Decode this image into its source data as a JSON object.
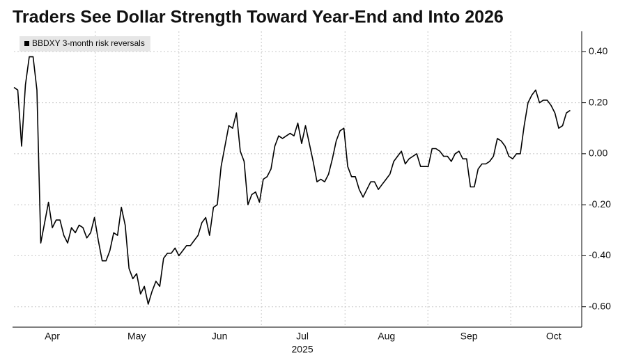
{
  "chart_data": {
    "type": "line",
    "title": "Traders See Dollar Strength Toward Year-End and Into 2026",
    "xlabel": "2025",
    "series": [
      {
        "name": "BBDXY 3-month risk reversals",
        "color": "#000000",
        "values": [
          0.26,
          0.25,
          0.03,
          0.27,
          0.38,
          0.38,
          0.25,
          -0.35,
          -0.27,
          -0.19,
          -0.29,
          -0.26,
          -0.26,
          -0.32,
          -0.35,
          -0.29,
          -0.31,
          -0.28,
          -0.29,
          -0.33,
          -0.31,
          -0.25,
          -0.34,
          -0.42,
          -0.42,
          -0.38,
          -0.31,
          -0.32,
          -0.21,
          -0.28,
          -0.45,
          -0.49,
          -0.47,
          -0.55,
          -0.52,
          -0.59,
          -0.54,
          -0.5,
          -0.52,
          -0.41,
          -0.39,
          -0.39,
          -0.37,
          -0.4,
          -0.38,
          -0.36,
          -0.36,
          -0.34,
          -0.32,
          -0.27,
          -0.25,
          -0.32,
          -0.21,
          -0.2,
          -0.05,
          0.03,
          0.11,
          0.1,
          0.16,
          0.01,
          -0.03,
          -0.2,
          -0.16,
          -0.15,
          -0.19,
          -0.1,
          -0.09,
          -0.06,
          0.03,
          0.07,
          0.06,
          0.07,
          0.08,
          0.07,
          0.12,
          0.04,
          0.11,
          0.04,
          -0.03,
          -0.11,
          -0.1,
          -0.11,
          -0.08,
          -0.02,
          0.05,
          0.09,
          0.1,
          -0.05,
          -0.09,
          -0.09,
          -0.14,
          -0.17,
          -0.14,
          -0.11,
          -0.11,
          -0.14,
          -0.12,
          -0.1,
          -0.08,
          -0.03,
          -0.01,
          0.01,
          -0.04,
          -0.02,
          -0.01,
          0.0,
          -0.05,
          -0.05,
          -0.05,
          0.02,
          0.02,
          0.01,
          -0.01,
          -0.01,
          -0.03,
          0.0,
          0.01,
          -0.02,
          -0.02,
          -0.13,
          -0.13,
          -0.06,
          -0.04,
          -0.04,
          -0.03,
          -0.01,
          0.06,
          0.05,
          0.03,
          -0.01,
          -0.02,
          0.0,
          0.0,
          0.11,
          0.2,
          0.23,
          0.25,
          0.2,
          0.21,
          0.21,
          0.19,
          0.16,
          0.1,
          0.11,
          0.16,
          0.17
        ]
      }
    ],
    "xlim": [
      0,
      148
    ],
    "xticks": [
      {
        "value": 10.0,
        "label": "Apr"
      },
      {
        "value": 32.0,
        "label": "May"
      },
      {
        "value": 53.6,
        "label": "Jun"
      },
      {
        "value": 75.2,
        "label": "Jul"
      },
      {
        "value": 97.1,
        "label": "Aug"
      },
      {
        "value": 118.6,
        "label": "Sep"
      },
      {
        "value": 140.7,
        "label": "Oct"
      }
    ],
    "xgrid": [
      21.2,
      43.0,
      64.5,
      86.3,
      107.9,
      129.5
    ],
    "ylim": [
      -0.68,
      0.48
    ],
    "yticks": [
      {
        "value": 0.4,
        "label": "0.40"
      },
      {
        "value": 0.2,
        "label": "0.20"
      },
      {
        "value": 0,
        "label": "0.00"
      },
      {
        "value": -0.2,
        "label": "-0.20"
      },
      {
        "value": -0.4,
        "label": "-0.40"
      },
      {
        "value": -0.6,
        "label": "-0.60"
      }
    ],
    "grid": true,
    "legend": "top-left"
  }
}
